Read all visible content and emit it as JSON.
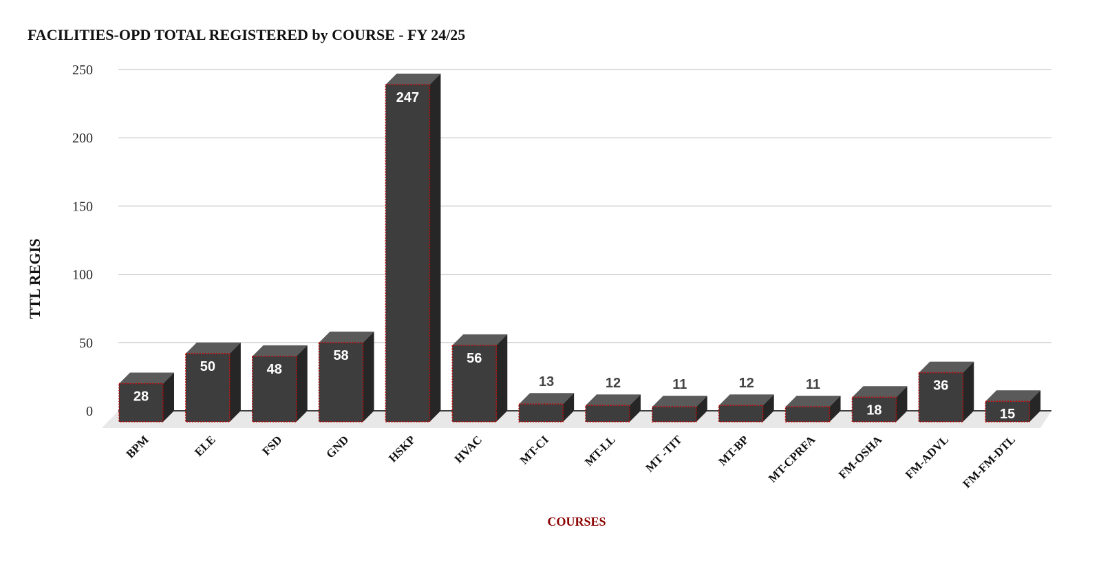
{
  "chart_data": {
    "type": "bar3d",
    "title": "FACILITIES-OPD TOTAL REGISTERED by COURSE - FY 24/25",
    "x_label": "COURSES",
    "y_label": "TTL REGIS",
    "categories": [
      "BPM",
      "ELE",
      "FSD",
      "GND",
      "HSKP",
      "HVAC",
      "MT-CI",
      "MT-LL",
      "MT -TIT",
      "MT-BP",
      "MT-CPRFA",
      "FM-OSHA",
      "FM-ADVL",
      "FM-FM-DTL"
    ],
    "values": [
      28,
      50,
      48,
      58,
      247,
      56,
      13,
      12,
      11,
      12,
      11,
      18,
      36,
      15
    ],
    "color": "#3d3d3d",
    "ylim": [
      0,
      250
    ],
    "yticks": [
      0,
      50,
      100,
      150,
      200,
      250
    ],
    "grid": true
  }
}
